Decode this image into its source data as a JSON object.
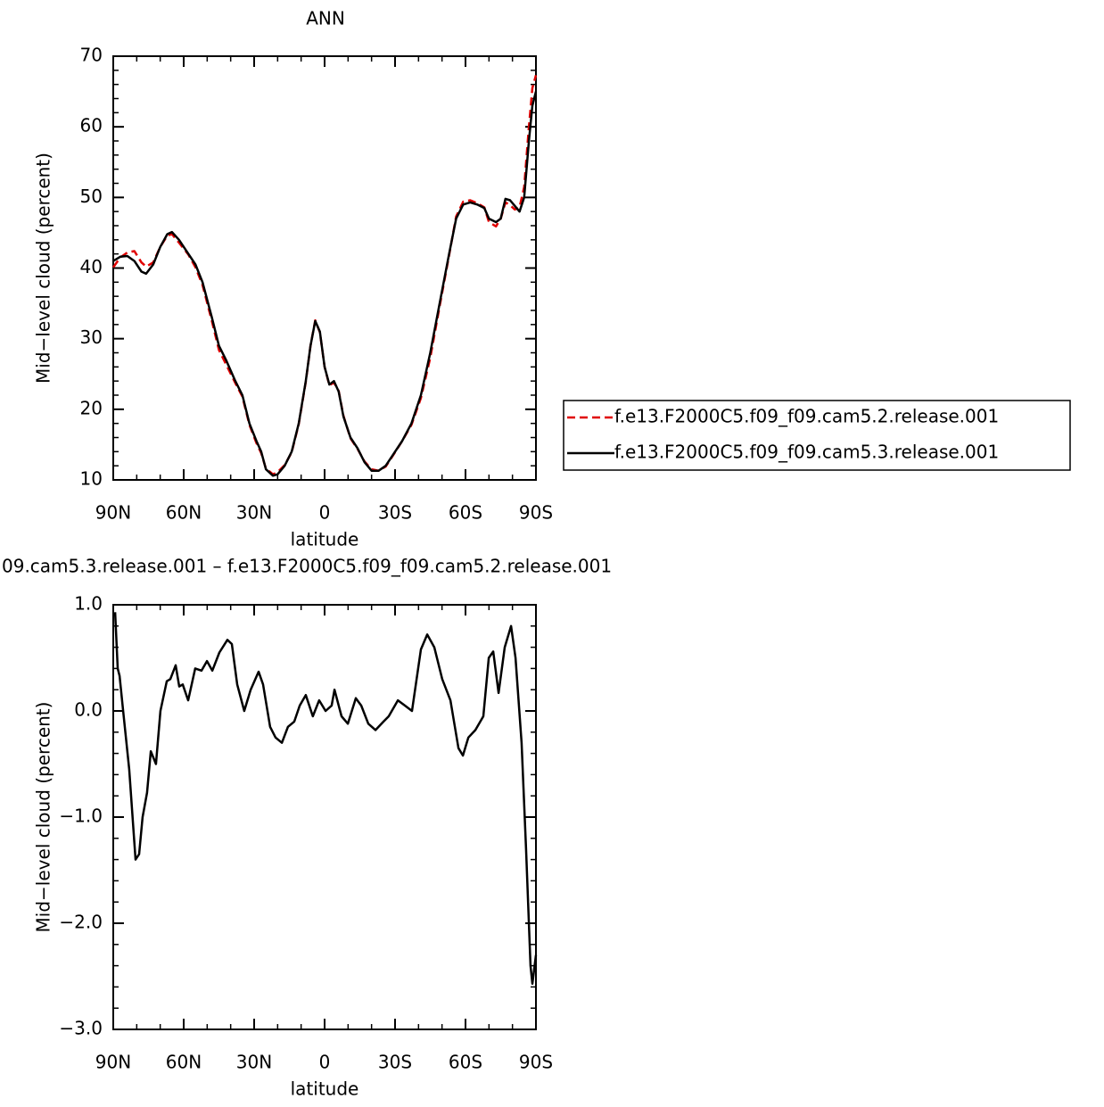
{
  "chart_data": [
    {
      "type": "line",
      "title": "ANN",
      "xlabel": "latitude",
      "ylabel": "Mid−level cloud (percent)",
      "x": [
        90,
        87,
        84,
        81,
        78,
        76,
        73,
        70,
        67,
        65,
        62,
        58,
        55,
        52,
        48,
        45,
        42,
        38,
        35,
        32,
        29,
        27,
        25,
        22,
        20,
        17,
        14,
        11,
        8,
        6,
        4,
        2,
        0,
        -2,
        -4,
        -6,
        -8,
        -11,
        -14,
        -17,
        -20,
        -23,
        -26,
        -29,
        -33,
        -37,
        -41,
        -45,
        -49,
        -53,
        -56,
        -59,
        -62,
        -65,
        -68,
        -70,
        -73,
        -75,
        -77,
        -79,
        -81,
        -83,
        -85,
        -87,
        -88.5,
        -90
      ],
      "series": [
        {
          "name": "f.e13.F2000C5.f09_f09.cam5.2.release.001",
          "color": "#e00000",
          "dash": true,
          "values": [
            40.1,
            41.5,
            42.2,
            42.4,
            40.8,
            40.2,
            40.8,
            43.0,
            44.6,
            44.8,
            43.6,
            41.9,
            40.1,
            37.6,
            32.5,
            28.4,
            26.4,
            23.7,
            21.8,
            17.8,
            15.2,
            13.8,
            11.6,
            10.8,
            11.1,
            12.1,
            13.9,
            17.9,
            23.9,
            29.0,
            32.6,
            30.9,
            26.0,
            23.4,
            23.8,
            22.6,
            19.1,
            15.9,
            14.4,
            12.6,
            11.5,
            11.3,
            11.9,
            13.4,
            15.5,
            17.8,
            21.6,
            27.3,
            34.6,
            41.8,
            47.3,
            49.4,
            49.6,
            49.2,
            48.6,
            46.5,
            45.9,
            47.0,
            49.3,
            48.9,
            48.3,
            48.6,
            51.5,
            60.0,
            65.5,
            67.3
          ]
        },
        {
          "name": "f.e13.F2000C5.f09_f09.cam5.3.release.001",
          "color": "#000000",
          "dash": false,
          "values": [
            41.0,
            41.6,
            41.7,
            41.0,
            39.5,
            39.2,
            40.5,
            43.0,
            44.8,
            45.1,
            44.0,
            42.0,
            40.5,
            38.0,
            33.0,
            29.0,
            27.0,
            24.0,
            22.0,
            18.0,
            15.5,
            14.0,
            11.5,
            10.6,
            10.8,
            12.0,
            14.0,
            18.0,
            24.0,
            29.0,
            32.5,
            31.0,
            26.0,
            23.5,
            24.0,
            22.5,
            19.0,
            16.0,
            14.5,
            12.5,
            11.3,
            11.3,
            12.0,
            13.5,
            15.5,
            18.0,
            22.0,
            28.0,
            35.0,
            42.0,
            47.0,
            49.0,
            49.3,
            49.0,
            48.5,
            47.0,
            46.5,
            47.0,
            49.8,
            49.6,
            48.8,
            48.0,
            50.0,
            58.0,
            63.0,
            65.0
          ]
        }
      ],
      "xlim": [
        90,
        -90
      ],
      "xticks": [
        {
          "value": 90,
          "label": "90N"
        },
        {
          "value": 60,
          "label": "60N"
        },
        {
          "value": 30,
          "label": "30N"
        },
        0,
        {
          "value": -30,
          "label": "30S"
        },
        {
          "value": -60,
          "label": "60S"
        },
        {
          "value": -90,
          "label": "90S"
        }
      ],
      "ylim": [
        10,
        70
      ],
      "yticks": [
        10,
        20,
        30,
        40,
        50,
        60,
        70
      ],
      "legend": "right"
    },
    {
      "type": "line",
      "title": "09.cam5.3.release.001 – f.e13.F2000C5.f09_f09.cam5.2.release.001",
      "xlabel": "latitude",
      "ylabel": "Mid−level cloud (percent)",
      "x": [
        89.2,
        88.1,
        87.3,
        85.8,
        83.2,
        80.5,
        79,
        77.5,
        75.6,
        74,
        71.8,
        69.9,
        67.2,
        65.7,
        63.4,
        61.9,
        60.4,
        58.1,
        55.1,
        52.4,
        50.1,
        47.8,
        44.8,
        41.4,
        39.5,
        37.2,
        34.2,
        31.5,
        28.1,
        26.2,
        23.2,
        20.9,
        18.2,
        15.6,
        12.9,
        10.6,
        8,
        5,
        2.3,
        -0.4,
        -3,
        -4.2,
        -7.2,
        -9.9,
        -13.3,
        -15.6,
        -18.6,
        -21.7,
        -25.1,
        -27.3,
        -31.2,
        -34.2,
        -37.2,
        -41,
        -43.7,
        -46.7,
        -50.1,
        -53.6,
        -57,
        -58.9,
        -61.2,
        -64.2,
        -67.6,
        -69.9,
        -71.8,
        -74.1,
        -76.7,
        -79.4,
        -81.3,
        -83.9,
        -85.8,
        -87.7,
        -88.5,
        -90
      ],
      "values": [
        0.93,
        0.4,
        0.33,
        0.0,
        -0.55,
        -1.4,
        -1.35,
        -1.0,
        -0.77,
        -0.38,
        -0.5,
        0.0,
        0.28,
        0.3,
        0.43,
        0.23,
        0.25,
        0.1,
        0.4,
        0.38,
        0.47,
        0.38,
        0.55,
        0.67,
        0.63,
        0.25,
        0.0,
        0.2,
        0.37,
        0.25,
        -0.15,
        -0.25,
        -0.3,
        -0.15,
        -0.1,
        0.05,
        0.15,
        -0.05,
        0.1,
        0.0,
        0.05,
        0.2,
        -0.05,
        -0.12,
        0.12,
        0.05,
        -0.12,
        -0.18,
        -0.1,
        -0.05,
        0.1,
        0.05,
        0.0,
        0.58,
        0.72,
        0.6,
        0.3,
        0.1,
        -0.35,
        -0.42,
        -0.25,
        -0.18,
        -0.05,
        0.5,
        0.56,
        0.17,
        0.6,
        0.8,
        0.5,
        -0.3,
        -1.3,
        -2.4,
        -2.57,
        -2.3
      ],
      "color": "#000000",
      "xlim": [
        90,
        -90
      ],
      "xticks": [
        {
          "value": 90,
          "label": "90N"
        },
        {
          "value": 60,
          "label": "60N"
        },
        {
          "value": 30,
          "label": "30N"
        },
        0,
        {
          "value": -30,
          "label": "30S"
        },
        {
          "value": -60,
          "label": "60S"
        },
        {
          "value": -90,
          "label": "90S"
        }
      ],
      "ylim": [
        -3,
        1
      ],
      "yticks": [
        {
          "value": 1,
          "label": "1.0"
        },
        {
          "value": 0,
          "label": "0.0"
        },
        {
          "value": -1,
          "label": "−1.0"
        },
        {
          "value": -2,
          "label": "−2.0"
        },
        {
          "value": -3,
          "label": "−3.0"
        }
      ]
    }
  ]
}
